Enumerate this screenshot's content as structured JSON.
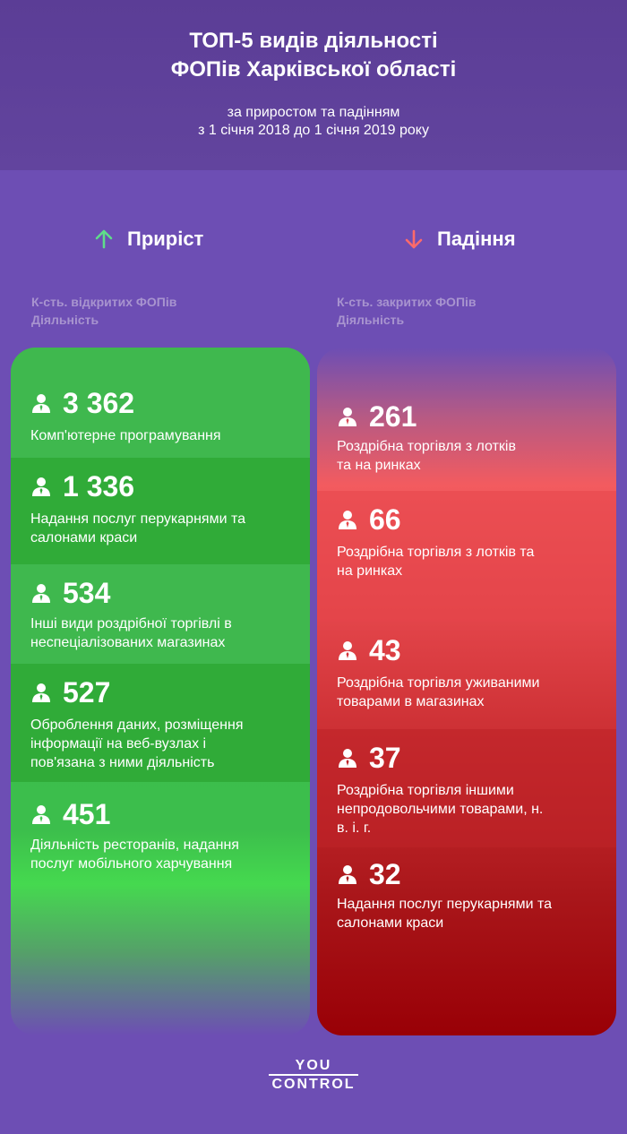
{
  "header": {
    "title": "ТОП-5 видів діяльності\nФОПів Харківської області",
    "subtitle": "за приростом та падінням\nз 1 січня 2018 до 1 січня 2019 року"
  },
  "growth": {
    "heading": "Приріст",
    "meta_count": "К-сть. відкритих ФОПів",
    "meta_activity": "Діяльність",
    "items": [
      {
        "value": "3 362",
        "label": "Комп'ютерне програмування"
      },
      {
        "value": "1 336",
        "label": "Надання послуг перукарнями та\nсалонами краси"
      },
      {
        "value": "534",
        "label": "Інші види роздрібної торгівлі в\nнеспеціалізованих магазинах"
      },
      {
        "value": "527",
        "label": "Оброблення даних, розміщення\nінформації на веб-вузлах і\nпов'язана з ними діяльність"
      },
      {
        "value": "451",
        "label": "Діяльність ресторанів, надання\nпослуг мобільного харчування"
      }
    ]
  },
  "decline": {
    "heading": "Падіння",
    "meta_count": "К-сть. закритих ФОПів",
    "meta_activity": "Діяльність",
    "items": [
      {
        "value": "261",
        "label": "Роздрібна торгівля з лотків\nта на ринках"
      },
      {
        "value": "66",
        "label": "Роздрібна торгівля з лотків та\nна ринках"
      },
      {
        "value": "43",
        "label": "Роздрібна торгівля уживаними\nтоварами в магазинах"
      },
      {
        "value": "37",
        "label": "Роздрібна торгівля іншими\nнепродовольчими товарами, н.\nв. і. г."
      },
      {
        "value": "32",
        "label": "Надання послуг перукарнями та\nсалонами краси"
      }
    ]
  },
  "logo": {
    "top": "YOU",
    "bottom": "CONTROL"
  },
  "colors": {
    "growth_arrow": "#5fdd8a",
    "decline_arrow": "#ff6a6a",
    "background": "#6d4eb4"
  },
  "icons": {
    "growth": "arrow-up-icon",
    "decline": "arrow-down-icon",
    "item": "person-icon"
  }
}
